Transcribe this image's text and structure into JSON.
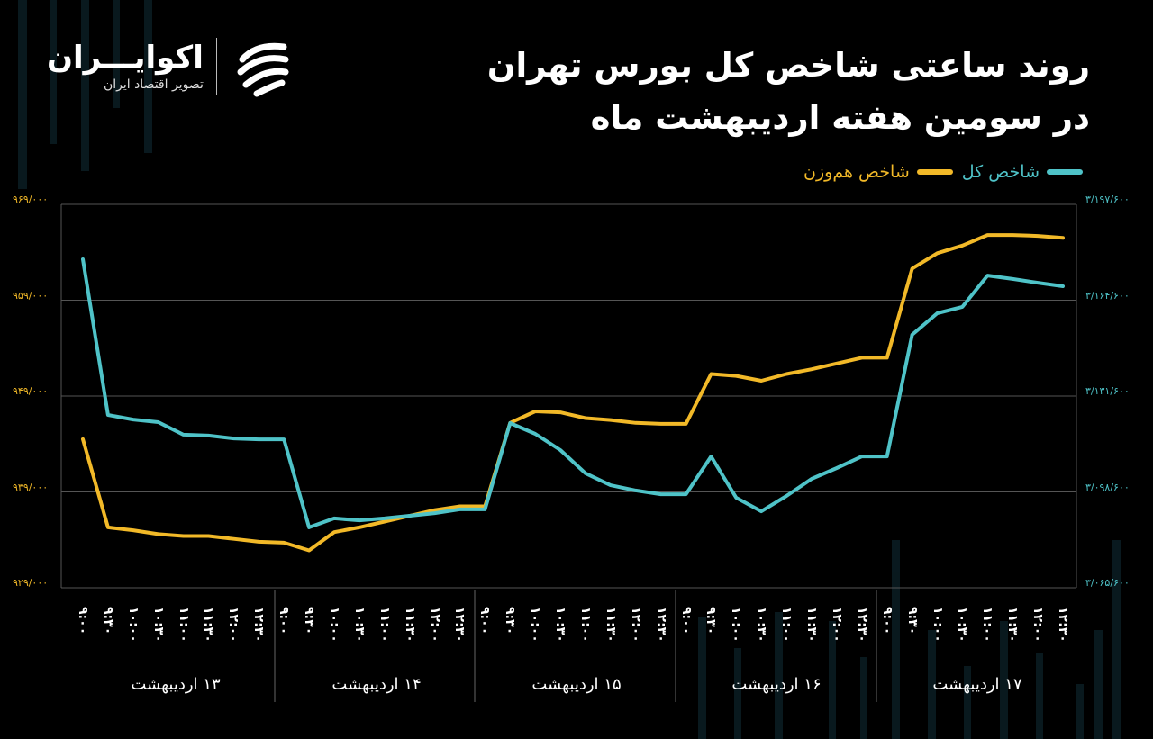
{
  "header": {
    "title_line1": "روند ساعتی شاخص کل بورس تهران",
    "title_line2": "در سومین هفته اردیبهشت ماه"
  },
  "logo": {
    "name": "اکوایـــران",
    "subtitle": "تصویر اقتصاد ایران",
    "icon": "ecoiran-logo-icon"
  },
  "legend": [
    {
      "label": "شاخص کل",
      "color": "#4fc3c8"
    },
    {
      "label": "شاخص هم‌وزن",
      "color": "#f2b928"
    }
  ],
  "axes": {
    "left_ticks": [
      "۹۶۹/۰۰۰",
      "۹۵۹/۰۰۰",
      "۹۴۹/۰۰۰",
      "۹۳۹/۰۰۰",
      "۹۲۹/۰۰۰"
    ],
    "right_ticks": [
      "۳/۱۹۷/۶۰۰",
      "۳/۱۶۴/۶۰۰",
      "۳/۱۳۱/۶۰۰",
      "۳/۰۹۸/۶۰۰",
      "۳/۰۶۵/۶۰۰"
    ],
    "time_ticks": [
      "۹:۰۰",
      "۹:۳۰",
      "۱۰:۰۰",
      "۱۰:۳۰",
      "۱۱:۰۰",
      "۱۱:۳۰",
      "۱۲:۰۰",
      "۱۲:۳۰"
    ],
    "days": [
      "۱۳ اردیبهشت",
      "۱۴ اردیبهشت",
      "۱۵ اردیبهشت",
      "۱۶ اردیبهشت",
      "۱۷ اردیبهشت"
    ]
  },
  "chart_data": {
    "type": "line",
    "title": "روند ساعتی شاخص کل بورس تهران در سومین هفته اردیبهشت ماه",
    "xlabel": "",
    "ylabel_left": "شاخص هم‌وزن",
    "ylabel_right": "شاخص کل",
    "x_groups": [
      "۱۳ اردیبهشت",
      "۱۴ اردیبهشت",
      "۱۵ اردیبهشت",
      "۱۶ اردیبهشت",
      "۱۷ اردیبهشت"
    ],
    "x_times": [
      "9:00",
      "9:30",
      "10:00",
      "10:30",
      "11:00",
      "11:30",
      "12:00",
      "12:30"
    ],
    "ylim_left": [
      929000,
      969000
    ],
    "ylim_right": [
      3065600,
      3197600
    ],
    "grid": true,
    "legend_position": "top-right",
    "series": [
      {
        "name": "شاخص کل",
        "axis": "right",
        "color": "#4fc3c8",
        "values": [
          3178700,
          3125100,
          3123500,
          3122600,
          3118300,
          3118000,
          3117000,
          3116700,
          3116700,
          3086400,
          3089500,
          3088800,
          3089500,
          3090400,
          3091300,
          3092600,
          3092600,
          3122300,
          3118600,
          3113000,
          3105000,
          3100900,
          3099100,
          3097800,
          3097800,
          3110800,
          3096600,
          3091900,
          3097200,
          3103100,
          3106800,
          3110800,
          3110800,
          3152700,
          3160100,
          3162300,
          3173100,
          3171900,
          3170600,
          3169400
        ]
      },
      {
        "name": "شاخص هم‌وزن",
        "axis": "left",
        "color": "#f2b928",
        "values": [
          944500,
          935300,
          935000,
          934600,
          934400,
          934400,
          934100,
          933800,
          933700,
          932900,
          934800,
          935300,
          935900,
          936500,
          937100,
          937500,
          937500,
          946200,
          947400,
          947300,
          946700,
          946500,
          946200,
          946100,
          946100,
          951300,
          951100,
          950600,
          951300,
          951800,
          952400,
          953000,
          953000,
          962300,
          963900,
          964700,
          965800,
          965800,
          965700,
          965500
        ]
      }
    ]
  }
}
